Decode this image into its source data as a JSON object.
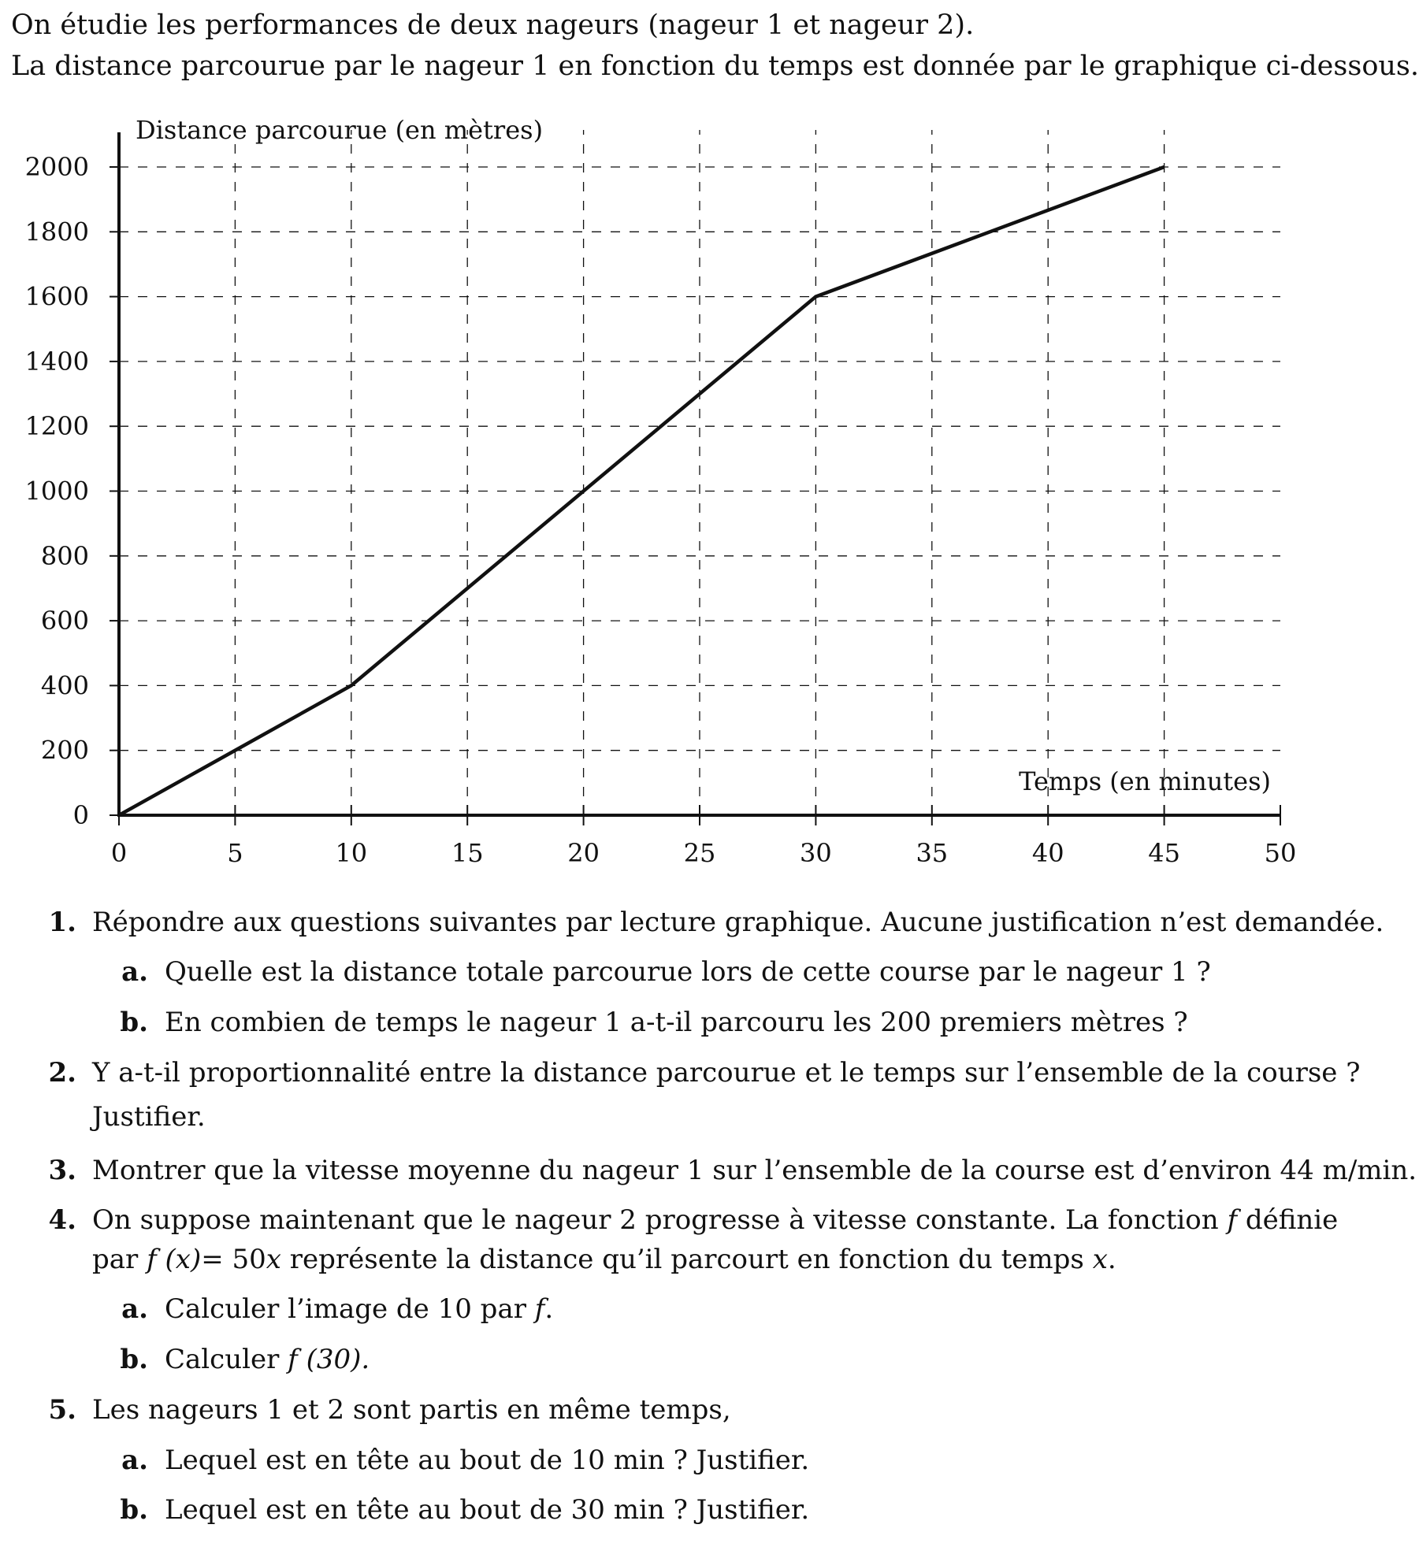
{
  "intro": [
    "On étudie les performances de deux nageurs (nageur 1 et nageur 2).",
    "La distance parcourue par le nageur 1 en fonction du temps est donnée par le graphique ci-dessous."
  ],
  "chart_data": {
    "type": "line",
    "ylabel": "Distance parcourue (en mètres)",
    "xlabel": "Temps (en minutes)",
    "xlim": [
      0,
      50
    ],
    "ylim": [
      0,
      2000
    ],
    "x_ticks": [
      "0",
      "5",
      "10",
      "15",
      "20",
      "25",
      "30",
      "35",
      "40",
      "45",
      "50"
    ],
    "y_ticks": [
      "0",
      "200",
      "400",
      "600",
      "800",
      "1000",
      "1200",
      "1400",
      "1600",
      "1800",
      "2000"
    ],
    "grid": true,
    "series": [
      {
        "points": [
          [
            0,
            0
          ],
          [
            10,
            400
          ],
          [
            30,
            1600
          ],
          [
            45,
            2000
          ]
        ]
      }
    ]
  },
  "questions": {
    "q1": {
      "num": "1.",
      "text": "Répondre aux questions suivantes par lecture graphique. Aucune justification n’est demandée."
    },
    "q1a": {
      "num": "a.",
      "text": "Quelle est la distance totale parcourue lors de cette course par le nageur 1 ?"
    },
    "q1b": {
      "num": "b.",
      "text": "En combien de temps le nageur 1 a-t-il parcouru les 200 premiers mètres ?"
    },
    "q2": {
      "num": "2.",
      "line1": "Y a-t-il proportionnalité entre la distance parcourue et le temps sur l’ensemble de la course ?",
      "line2": "Justifier."
    },
    "q3": {
      "num": "3.",
      "text": "Montrer que la vitesse moyenne du nageur 1 sur l’ensemble de la course est d’environ 44 m/min."
    },
    "q4": {
      "num": "4.",
      "line1": "On suppose maintenant que le nageur 2 progresse à vitesse constante. La fonction",
      "f": "f",
      "line1_end": "définie",
      "par": "par",
      "fx": "f (x)",
      "eq": "= 50",
      "x": "x",
      "line2_rest": "représente la distance qu’il parcourt en fonction du temps",
      "x_end": "x",
      "dot": "."
    },
    "q4a": {
      "num": "a.",
      "text": "Calculer l’image de 10 par",
      "f": "f",
      "dot": "."
    },
    "q4b": {
      "num": "b.",
      "text": "Calculer",
      "f30": "f (30)."
    },
    "q5": {
      "num": "5.",
      "text": "Les nageurs 1 et 2 sont partis en même temps,"
    },
    "q5a": {
      "num": "a.",
      "text": "Lequel est en tête au bout de 10 min ? Justifier."
    },
    "q5b": {
      "num": "b.",
      "text": "Lequel est en tête au bout de 30 min ? Justifier."
    }
  }
}
